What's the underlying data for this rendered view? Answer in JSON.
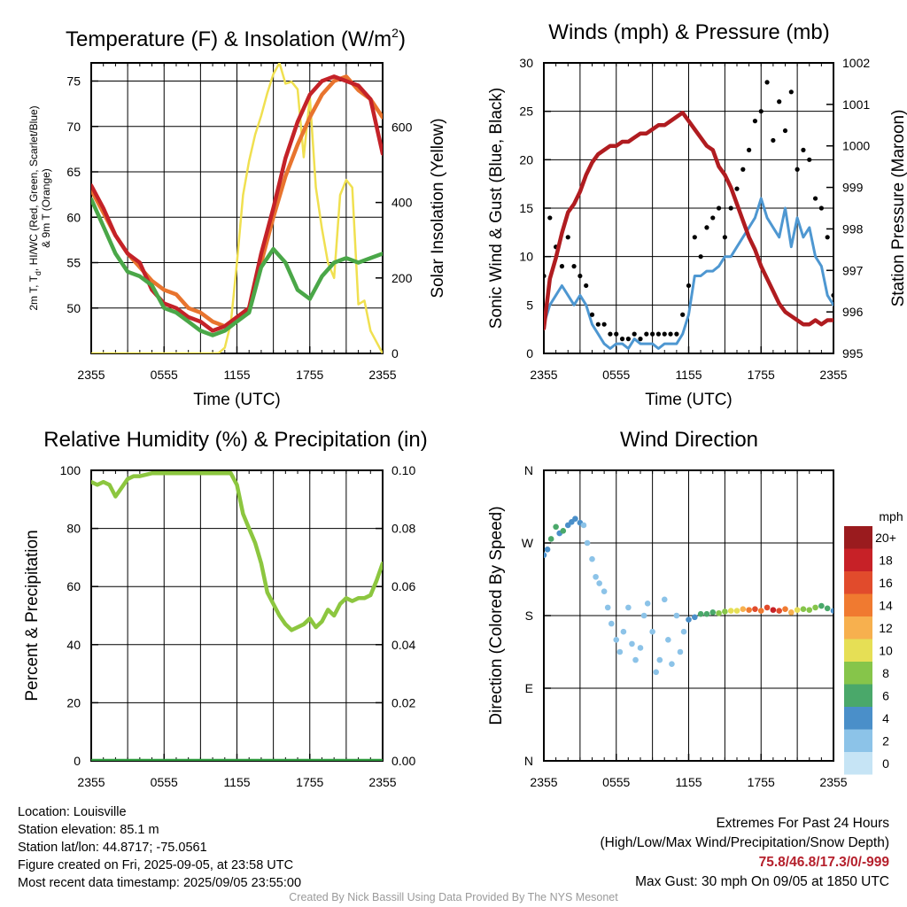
{
  "chart_data": [
    {
      "type": "line",
      "title": "Temperature (F) & Insolation (W/m²)",
      "title_parts": {
        "text": "Temperature (F) & Insolation (W/m",
        "sup": "2",
        "close": ")"
      },
      "xlabel": "Time (UTC)",
      "ylabel_lines": [
        "2m T, Tₐ, HI/WC (Red, Green, Scarlet/Blue)",
        "& 9m T (Orange)"
      ],
      "ylabel_parts": {
        "a": "2m T, T",
        "sub": "d",
        "b": ", HI/WC (Red, Green, Scarlet/Blue)",
        "line2": "& 9m T (Orange)"
      },
      "y2label": "Solar Insolation (Yellow)",
      "x_ticks": [
        "2355",
        "0555",
        "1155",
        "1755",
        "2355"
      ],
      "ylim": [
        45,
        77
      ],
      "y_ticks": [
        "50",
        "55",
        "60",
        "65",
        "70",
        "75"
      ],
      "y2lim": [
        0,
        770
      ],
      "y2_ticks": [
        "0",
        "200",
        "400",
        "600"
      ],
      "series": [
        {
          "color": "#f0e050",
          "axis": "right",
          "x": [
            0,
            0.5,
            1,
            1.5,
            2,
            2.5,
            3,
            3.5,
            4,
            4.5,
            5,
            5.5,
            6,
            6.5,
            7,
            7.5,
            8,
            8.5,
            9,
            9.5,
            10,
            10.5,
            11,
            11.5,
            12,
            12.5,
            13,
            13.5,
            14,
            14.5,
            15,
            15.5,
            16,
            16.5,
            17,
            17.5,
            18,
            18.5,
            19,
            19.5,
            20,
            20.5,
            21,
            21.5,
            22,
            22.5,
            23,
            23.5,
            24
          ],
          "y": [
            0,
            0,
            0,
            0,
            0,
            0,
            0,
            0,
            0,
            0,
            0,
            0,
            0,
            0,
            0,
            0,
            0,
            0,
            0,
            0,
            0,
            1,
            15,
            80,
            240,
            420,
            510,
            580,
            630,
            690,
            740,
            770,
            715,
            720,
            700,
            520,
            680,
            440,
            330,
            240,
            200,
            420,
            460,
            440,
            130,
            140,
            60,
            30,
            0
          ]
        },
        {
          "color": "#e8742e",
          "axis": "left",
          "x": [
            0,
            1,
            2,
            3,
            4,
            5,
            6,
            7,
            8,
            9,
            10,
            11,
            12,
            13,
            14,
            15,
            16,
            17,
            18,
            19,
            20,
            21,
            22,
            23,
            24
          ],
          "y": [
            63,
            60.5,
            58,
            56,
            54.5,
            53,
            52,
            51.5,
            50,
            49.5,
            48.5,
            48,
            49,
            50,
            55,
            60,
            64.5,
            68,
            71,
            73.5,
            75,
            75.5,
            74,
            73,
            71
          ]
        },
        {
          "color": "#c42228",
          "axis": "left",
          "x": [
            0,
            1,
            2,
            3,
            4,
            5,
            6,
            7,
            8,
            9,
            10,
            11,
            12,
            13,
            14,
            15,
            16,
            17,
            18,
            19,
            20,
            21,
            22,
            23,
            24
          ],
          "y": [
            63.5,
            61,
            58,
            56,
            55,
            52,
            50.5,
            50,
            49,
            48.5,
            47.5,
            48,
            49,
            50,
            56,
            61,
            66.5,
            70.5,
            73.5,
            75,
            75.5,
            75,
            74.5,
            73,
            67
          ]
        },
        {
          "color": "#4aa748",
          "axis": "left",
          "x": [
            0,
            1,
            2,
            3,
            4,
            5,
            6,
            7,
            8,
            9,
            10,
            11,
            12,
            13,
            14,
            15,
            16,
            17,
            18,
            19,
            20,
            21,
            22,
            23,
            24
          ],
          "y": [
            62,
            59,
            56,
            54,
            53.5,
            52.5,
            50,
            49.5,
            48.5,
            47.5,
            47,
            47.5,
            48.5,
            49.5,
            54.5,
            56.5,
            55,
            52,
            51,
            53.5,
            55,
            55.5,
            55,
            55.5,
            56
          ]
        }
      ]
    },
    {
      "type": "line",
      "title": "Winds (mph) & Pressure (mb)",
      "xlabel": "Time (UTC)",
      "ylabel": "Sonic Wind & Gust (Blue, Black)",
      "y2label": "Station Pressure (Maroon)",
      "x_ticks": [
        "2355",
        "0555",
        "1155",
        "1755",
        "2355"
      ],
      "ylim": [
        0,
        30
      ],
      "y_ticks": [
        "0",
        "5",
        "10",
        "15",
        "20",
        "25",
        "30"
      ],
      "y2lim": [
        995,
        1002
      ],
      "y2_ticks": [
        "995",
        "996",
        "997",
        "998",
        "999",
        "1000",
        "1001",
        "1002"
      ],
      "series": [
        {
          "color": "#4e97d1",
          "axis": "left",
          "x": [
            0,
            0.5,
            1,
            1.5,
            2,
            2.5,
            3,
            3.5,
            4,
            4.5,
            5,
            5.5,
            6,
            6.5,
            7,
            7.5,
            8,
            8.5,
            9,
            9.5,
            10,
            10.5,
            11,
            11.5,
            12,
            12.5,
            13,
            13.5,
            14,
            14.5,
            15,
            15.5,
            16,
            16.5,
            17,
            17.5,
            18,
            18.5,
            19,
            19.5,
            20,
            20.5,
            21,
            21.5,
            22,
            22.5,
            23,
            23.5,
            24
          ],
          "y": [
            3,
            5,
            6,
            7,
            6,
            5,
            6,
            5,
            3,
            2,
            1,
            0.5,
            1,
            1,
            0.5,
            1.5,
            1,
            1,
            1,
            0.5,
            1,
            1,
            1,
            2,
            4,
            8,
            8,
            8.5,
            8.5,
            9,
            10,
            10,
            11,
            12,
            13,
            14,
            16,
            14,
            13,
            12,
            15,
            11,
            14,
            12,
            13,
            10,
            9,
            6,
            5
          ]
        },
        {
          "color": "#000000",
          "axis": "left",
          "mode": "markers",
          "x": [
            0,
            0.5,
            1,
            1.5,
            2,
            2.5,
            3,
            3.5,
            4,
            4.5,
            5,
            5.5,
            6,
            6.5,
            7,
            7.5,
            8,
            8.5,
            9,
            9.5,
            10,
            10.5,
            11,
            11.5,
            12,
            12.5,
            13,
            13.5,
            14,
            14.5,
            15,
            15.5,
            16,
            16.5,
            17,
            17.5,
            18,
            18.5,
            19,
            19.5,
            20,
            20.5,
            21,
            21.5,
            22,
            22.5,
            23,
            23.5,
            24
          ],
          "y": [
            8,
            14,
            11,
            9,
            12,
            9,
            8,
            7,
            4,
            3,
            3,
            2,
            2,
            1.5,
            1.5,
            2,
            1.5,
            2,
            2,
            2,
            2,
            2,
            2,
            4,
            7,
            12,
            10,
            13,
            14,
            15,
            12,
            15,
            17,
            19,
            21,
            24,
            25,
            28,
            22,
            26,
            23,
            27,
            19,
            21,
            20,
            16,
            15,
            12,
            6
          ]
        },
        {
          "color": "#b01c20",
          "axis": "right",
          "x": [
            0,
            0.5,
            1,
            1.5,
            2,
            2.5,
            3,
            3.5,
            4,
            4.5,
            5,
            5.5,
            6,
            6.5,
            7,
            7.5,
            8,
            8.5,
            9,
            9.5,
            10,
            10.5,
            11,
            11.5,
            12,
            12.5,
            13,
            13.5,
            14,
            14.5,
            15,
            15.5,
            16,
            16.5,
            17,
            17.5,
            18,
            18.5,
            19,
            19.5,
            20,
            20.5,
            21,
            21.5,
            22,
            22.5,
            23,
            23.5,
            24
          ],
          "y": [
            995.6,
            996.8,
            997.3,
            997.9,
            998.4,
            998.6,
            998.9,
            999.3,
            999.6,
            999.8,
            999.9,
            1000.0,
            1000.0,
            1000.1,
            1000.1,
            1000.2,
            1000.3,
            1000.3,
            1000.4,
            1000.5,
            1000.5,
            1000.6,
            1000.7,
            1000.8,
            1000.6,
            1000.4,
            1000.2,
            1000.0,
            999.9,
            999.5,
            999.3,
            999.0,
            998.6,
            998.2,
            997.8,
            997.5,
            997.1,
            996.8,
            996.5,
            996.2,
            996.0,
            995.9,
            995.8,
            995.7,
            995.7,
            995.8,
            995.7,
            995.8,
            995.8
          ]
        }
      ]
    },
    {
      "type": "line",
      "title": "Relative Humidity (%) & Precipitation (in)",
      "ylabel": "Percent & Precipitation",
      "x_ticks": [
        "2355",
        "0555",
        "1155",
        "1755",
        "2355"
      ],
      "ylim": [
        0,
        100
      ],
      "y_ticks": [
        "0",
        "20",
        "40",
        "60",
        "80",
        "100"
      ],
      "y2lim": [
        0,
        0.1
      ],
      "y2_ticks": [
        "0.00",
        "0.02",
        "0.04",
        "0.06",
        "0.08",
        "0.10"
      ],
      "series": [
        {
          "color": "#8cc63f",
          "axis": "left",
          "x": [
            0,
            0.5,
            1,
            1.5,
            2,
            2.5,
            3,
            3.5,
            4,
            4.5,
            5,
            5.5,
            6,
            6.5,
            7,
            7.5,
            8,
            8.5,
            9,
            9.5,
            10,
            10.5,
            11,
            11.5,
            12,
            12.5,
            13,
            13.5,
            14,
            14.5,
            15,
            15.5,
            16,
            16.5,
            17,
            17.5,
            18,
            18.5,
            19,
            19.5,
            20,
            20.5,
            21,
            21.5,
            22,
            22.5,
            23,
            23.5,
            24
          ],
          "y": [
            96,
            95,
            96,
            95,
            91,
            94,
            97,
            98,
            98,
            98.5,
            99,
            99,
            99,
            99,
            99,
            99,
            99,
            99,
            99,
            99,
            99,
            99,
            99,
            99,
            95,
            85,
            80,
            75,
            68,
            58,
            54,
            50,
            47,
            45,
            46,
            47,
            49,
            46,
            48,
            52,
            50,
            54,
            56,
            55,
            56,
            56,
            57,
            62,
            68
          ]
        },
        {
          "color": "#2e9a3e",
          "axis": "right",
          "x": [
            0,
            24
          ],
          "y": [
            0,
            0
          ]
        }
      ]
    },
    {
      "type": "scatter",
      "title": "Wind Direction",
      "ylabel": "Direction (Colored By Speed)",
      "x_ticks": [
        "2355",
        "0555",
        "1155",
        "1755",
        "2355"
      ],
      "ylim": [
        0,
        360
      ],
      "y_ticks": [
        "N",
        "E",
        "S",
        "W",
        "N"
      ],
      "legend": {
        "title": "mph",
        "labels": [
          "0",
          "2",
          "4",
          "6",
          "8",
          "10",
          "12",
          "14",
          "16",
          "18",
          "20+"
        ],
        "colors": [
          "#c6e4f5",
          "#8cc3e8",
          "#4a8fc9",
          "#4aa86a",
          "#86c54a",
          "#e6df55",
          "#f7b04e",
          "#f07a30",
          "#e14b2c",
          "#c72127",
          "#9a1b1e"
        ],
        "placement": "right"
      },
      "series": [
        {
          "mode": "markers",
          "x": [
            0,
            0.3,
            0.6,
            1,
            1.3,
            1.6,
            2,
            2.3,
            2.6,
            3,
            3.3,
            3.6,
            4,
            4.3,
            4.6,
            5,
            5.3,
            5.6,
            6,
            6.3,
            6.6,
            7,
            7.3,
            7.6,
            8,
            8.3,
            8.6,
            9,
            9.3,
            9.6,
            10,
            10.3,
            10.6,
            11,
            11.3,
            11.6,
            12,
            12.5,
            13,
            13.5,
            14,
            14.5,
            15,
            15.5,
            16,
            16.5,
            17,
            17.5,
            18,
            18.5,
            19,
            19.5,
            20,
            20.5,
            21,
            21.5,
            22,
            22.5,
            23,
            23.5,
            24
          ],
          "y": [
            255,
            262,
            275,
            290,
            282,
            285,
            292,
            296,
            300,
            295,
            292,
            270,
            250,
            228,
            220,
            210,
            190,
            170,
            150,
            135,
            160,
            190,
            145,
            125,
            140,
            180,
            195,
            160,
            110,
            125,
            200,
            150,
            120,
            180,
            135,
            160,
            175,
            178,
            182,
            182,
            184,
            183,
            185,
            186,
            186,
            188,
            187,
            188,
            186,
            190,
            187,
            186,
            188,
            184,
            187,
            188,
            187,
            190,
            192,
            189,
            186
          ],
          "speeds": [
            4,
            4,
            6,
            6,
            4,
            6,
            4,
            4,
            4,
            4,
            2,
            2,
            2,
            2,
            2,
            2,
            1,
            1,
            1,
            1,
            1,
            1,
            1,
            1,
            1,
            1,
            2,
            2,
            1,
            1,
            1,
            1,
            1,
            2,
            2,
            2,
            4,
            4,
            6,
            6,
            6,
            8,
            8,
            10,
            10,
            12,
            14,
            16,
            14,
            16,
            18,
            16,
            14,
            12,
            10,
            8,
            8,
            8,
            6,
            6,
            4
          ]
        }
      ]
    }
  ],
  "info": {
    "location": "Location: Louisville",
    "elevation": "Station elevation: 85.1 m",
    "latlon": "Station lat/lon: 44.8717; -75.0561",
    "created": "Figure created on Fri, 2025-09-05, at 23:58 UTC",
    "recent": "Most recent data timestamp: 2025/09/05 23:55:00"
  },
  "extremes": {
    "title": "Extremes For Past 24 Hours",
    "subtitle": "(High/Low/Max Wind/Precipitation/Snow Depth)",
    "values": "75.8/46.8/17.3/0/-999",
    "gust": "Max Gust: 30 mph On 09/05 at 1850 UTC"
  },
  "credit": "Created By Nick Bassill Using Data Provided By The NYS Mesonet"
}
